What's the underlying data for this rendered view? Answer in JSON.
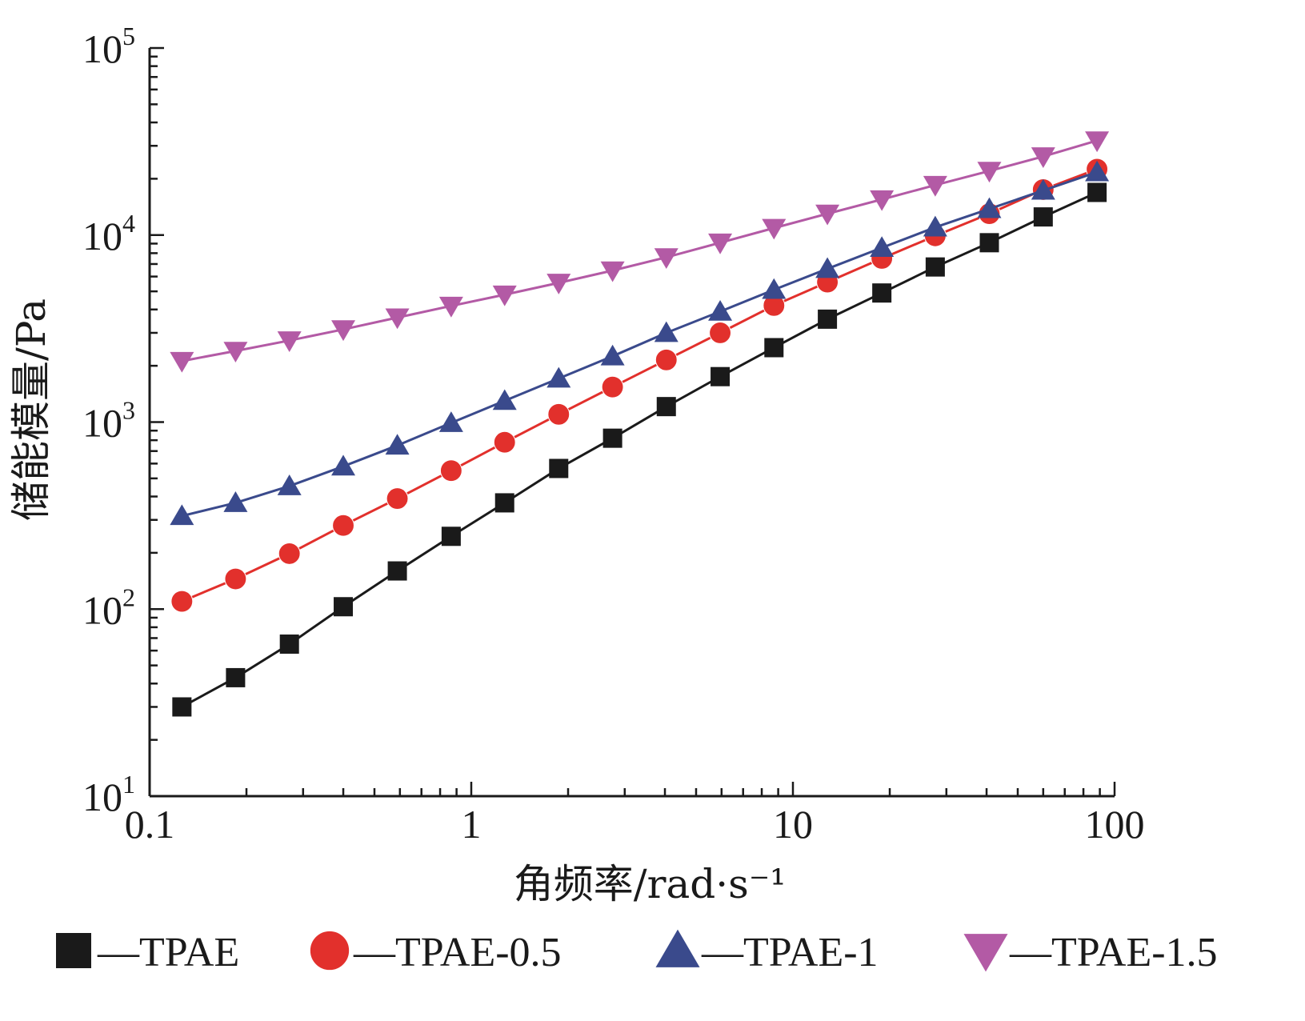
{
  "chart_data": {
    "type": "line",
    "xlabel": "角频率/rad·s⁻¹",
    "ylabel": "储能模量/Pa",
    "x_scale": "log",
    "y_scale": "log",
    "xlim": [
      0.1,
      100
    ],
    "ylim": [
      10,
      100000
    ],
    "x_ticks": [
      "0.1",
      "1",
      "10",
      "100"
    ],
    "y_ticks": [
      {
        "base": "10",
        "exp": "1"
      },
      {
        "base": "10",
        "exp": "2"
      },
      {
        "base": "10",
        "exp": "3"
      },
      {
        "base": "10",
        "exp": "4"
      },
      {
        "base": "10",
        "exp": "5"
      }
    ],
    "grid": false,
    "legend_position": "bottom",
    "x": [
      0.126,
      0.185,
      0.272,
      0.4,
      0.589,
      0.866,
      1.27,
      1.87,
      2.75,
      4.04,
      5.94,
      8.73,
      12.8,
      18.9,
      27.7,
      40.8,
      60,
      88.2
    ],
    "series": [
      {
        "name": "TPAE",
        "marker": "square",
        "color": "#1a1a1a",
        "values": [
          30,
          43,
          65,
          103,
          160,
          245,
          370,
          565,
          820,
          1210,
          1750,
          2500,
          3550,
          4900,
          6750,
          9100,
          12500,
          16900
        ]
      },
      {
        "name": "TPAE-0.5",
        "marker": "circle",
        "color": "#e2302c",
        "values": [
          110,
          145,
          198,
          280,
          390,
          550,
          780,
          1100,
          1540,
          2150,
          3000,
          4200,
          5600,
          7500,
          9900,
          13000,
          17500,
          22500
        ]
      },
      {
        "name": "TPAE-1",
        "marker": "triangle-up",
        "color": "#3a4a8c",
        "values": [
          315,
          370,
          455,
          580,
          750,
          990,
          1300,
          1710,
          2250,
          3000,
          3900,
          5100,
          6600,
          8550,
          11000,
          13800,
          17300,
          21700
        ]
      },
      {
        "name": "TPAE-1.5",
        "marker": "triangle-down",
        "color": "#b35aa5",
        "values": [
          2120,
          2400,
          2730,
          3130,
          3620,
          4180,
          4800,
          5550,
          6460,
          7600,
          9100,
          10900,
          13000,
          15500,
          18500,
          22000,
          26300,
          32000
        ]
      }
    ]
  }
}
